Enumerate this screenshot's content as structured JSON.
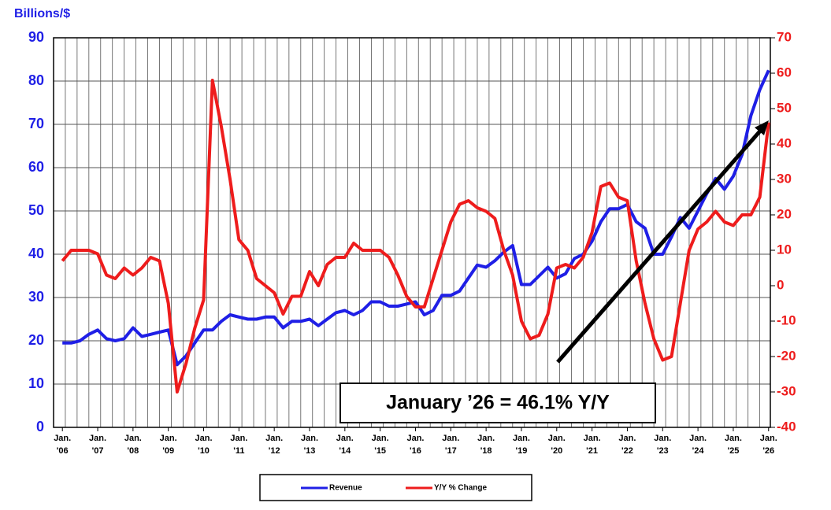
{
  "chart_data": {
    "type": "line",
    "y_label": "Billions/$",
    "annotation": "January ’26 = 46.1% Y/Y",
    "x": [
      2006,
      2006.25,
      2006.5,
      2006.75,
      2007,
      2007.25,
      2007.5,
      2007.75,
      2008,
      2008.25,
      2008.5,
      2008.75,
      2009,
      2009.25,
      2009.5,
      2009.75,
      2010,
      2010.25,
      2010.5,
      2010.75,
      2011,
      2011.25,
      2011.5,
      2011.75,
      2012,
      2012.25,
      2012.5,
      2012.75,
      2013,
      2013.25,
      2013.5,
      2013.75,
      2014,
      2014.25,
      2014.5,
      2014.75,
      2015,
      2015.25,
      2015.5,
      2015.75,
      2016,
      2016.25,
      2016.5,
      2016.75,
      2017,
      2017.25,
      2017.5,
      2017.75,
      2018,
      2018.25,
      2018.5,
      2018.75,
      2019,
      2019.25,
      2019.5,
      2019.75,
      2020,
      2020.25,
      2020.5,
      2020.75,
      2021,
      2021.25,
      2021.5,
      2021.75,
      2022,
      2022.25,
      2022.5,
      2022.75,
      2023,
      2023.25,
      2023.5,
      2023.75,
      2024,
      2024.25,
      2024.5,
      2024.75,
      2025,
      2025.25,
      2025.5,
      2025.75,
      2026
    ],
    "series": [
      {
        "name": "Revenue",
        "color": "#1f1fe6",
        "values": [
          19.5,
          19.5,
          20,
          21.5,
          22.5,
          20.5,
          20,
          20.5,
          23,
          21,
          21.5,
          22,
          22.5,
          14.5,
          16.5,
          19.5,
          22.5,
          22.5,
          24.5,
          26,
          25.5,
          25,
          25,
          25.5,
          25.5,
          23,
          24.5,
          24.5,
          25,
          23.5,
          25,
          26.5,
          27,
          26,
          27,
          29,
          29,
          28,
          28,
          28.5,
          29,
          26,
          27,
          30.5,
          30.5,
          31.5,
          34.5,
          37.5,
          37,
          38.5,
          40.5,
          42,
          33,
          33,
          35,
          37,
          34.5,
          35.5,
          39,
          40,
          43,
          47.5,
          50.5,
          50.5,
          51.5,
          47.5,
          46,
          40,
          40,
          44,
          48.5,
          46,
          50,
          54,
          57.5,
          55,
          58,
          63,
          72,
          78,
          82.5
        ]
      },
      {
        "name": "Y/Y % Change",
        "color": "#ee1c1c",
        "axis": "y2",
        "values": [
          7,
          10,
          10,
          10,
          9,
          3,
          2,
          5,
          3,
          5,
          8,
          7,
          -5,
          -30,
          -22,
          -12,
          -4,
          58,
          45,
          30,
          13,
          10,
          2,
          0,
          -2,
          -8,
          -3,
          -3,
          4,
          0,
          6,
          8,
          8,
          12,
          10,
          10,
          10,
          8,
          3,
          -3,
          -6,
          -6,
          2,
          10,
          18,
          23,
          24,
          22,
          21,
          19,
          10,
          3,
          -10,
          -15,
          -14,
          -8,
          5,
          6,
          5,
          8,
          15,
          28,
          29,
          25,
          24,
          7,
          -5,
          -15,
          -21,
          -20,
          -5,
          10,
          16,
          18,
          21,
          18,
          17,
          20,
          20,
          25,
          46.1
        ]
      }
    ],
    "xlim": [
      2005.75,
      2026.05
    ],
    "xticks": [
      {
        "value": 2006,
        "label": "Jan.\n'06"
      },
      {
        "value": 2007,
        "label": "Jan.\n'07"
      },
      {
        "value": 2008,
        "label": "Jan.\n'08"
      },
      {
        "value": 2009,
        "label": "Jan.\n'09"
      },
      {
        "value": 2010,
        "label": "Jan.\n'10"
      },
      {
        "value": 2011,
        "label": "Jan.\n'11"
      },
      {
        "value": 2012,
        "label": "Jan.\n'12"
      },
      {
        "value": 2013,
        "label": "Jan.\n'13"
      },
      {
        "value": 2014,
        "label": "Jan.\n'14"
      },
      {
        "value": 2015,
        "label": "Jan.\n'15"
      },
      {
        "value": 2016,
        "label": "Jan.\n'16"
      },
      {
        "value": 2017,
        "label": "Jan.\n'17"
      },
      {
        "value": 2018,
        "label": "Jan.\n'18"
      },
      {
        "value": 2019,
        "label": "Jan.\n'19"
      },
      {
        "value": 2020,
        "label": "Jan.\n'20"
      },
      {
        "value": 2021,
        "label": "Jan.\n'21"
      },
      {
        "value": 2022,
        "label": "Jan.\n'22"
      },
      {
        "value": 2023,
        "label": "Jan.\n'23"
      },
      {
        "value": 2024,
        "label": "Jan.\n'24"
      },
      {
        "value": 2025,
        "label": "Jan.\n'25"
      },
      {
        "value": 2026,
        "label": "Jan.\n'26"
      }
    ],
    "ylim": [
      0,
      90
    ],
    "yticks": [
      0,
      10,
      20,
      30,
      40,
      50,
      60,
      70,
      80,
      90
    ],
    "y2lim": [
      -40,
      70
    ],
    "y2ticks": [
      -40,
      -30,
      -20,
      -10,
      0,
      10,
      20,
      30,
      40,
      50,
      60,
      70
    ],
    "grid": true
  }
}
